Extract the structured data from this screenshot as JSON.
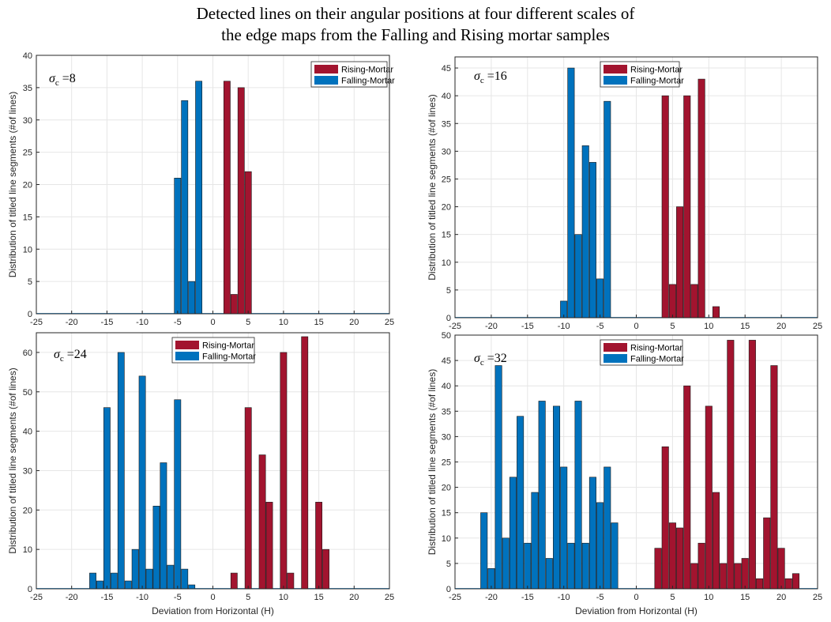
{
  "title_line1": "Detected lines on their angular positions at four different scales of",
  "title_line2": "the edge maps from the Falling and Rising mortar samples",
  "colors": {
    "rising": "#A2142F",
    "falling": "#0072BD",
    "grid": "#e6e6e6",
    "axis": "#262626"
  },
  "chart_data": [
    {
      "type": "bar",
      "annotation": "σc =8",
      "ylabel": "Distribution of titled line segments (#of lines)",
      "xlabel": "",
      "xlim": [
        -25,
        25
      ],
      "ylim": [
        0,
        40
      ],
      "xticks": [
        -25,
        -20,
        -15,
        -10,
        -5,
        0,
        5,
        10,
        15,
        20,
        25
      ],
      "yticks": [
        0,
        5,
        10,
        15,
        20,
        25,
        30,
        35,
        40
      ],
      "grid": true,
      "legend_position": "top-right",
      "series": [
        {
          "name": "Rising-Mortar",
          "x": [
            2,
            3,
            4,
            5
          ],
          "values": [
            36,
            3,
            35,
            22
          ]
        },
        {
          "name": "Falling-Mortar",
          "x": [
            -5,
            -4,
            -3,
            -2
          ],
          "values": [
            21,
            33,
            5,
            36
          ]
        }
      ]
    },
    {
      "type": "bar",
      "annotation": "σc =16",
      "ylabel": "Distribution of titled line segments (#of lines)",
      "xlabel": "",
      "xlim": [
        -25,
        25
      ],
      "ylim": [
        0,
        47
      ],
      "xticks": [
        -25,
        -20,
        -15,
        -10,
        -5,
        0,
        5,
        10,
        15,
        20,
        25
      ],
      "yticks": [
        0,
        5,
        10,
        15,
        20,
        25,
        30,
        35,
        40,
        45
      ],
      "grid": true,
      "legend_position": "top-right",
      "series": [
        {
          "name": "Rising-Mortar",
          "x": [
            4,
            5,
            6,
            7,
            8,
            9,
            10,
            11
          ],
          "values": [
            40,
            6,
            20,
            40,
            6,
            43,
            0,
            2
          ]
        },
        {
          "name": "Falling-Mortar",
          "x": [
            -10,
            -9,
            -8,
            -7,
            -6,
            -5,
            -4
          ],
          "values": [
            3,
            45,
            15,
            31,
            28,
            7,
            39
          ]
        }
      ]
    },
    {
      "type": "bar",
      "annotation": "σc =24",
      "ylabel": "Distribution of titled line segments (#of lines)",
      "xlabel": "Deviation from Horizontal (H)",
      "xlim": [
        -25,
        25
      ],
      "ylim": [
        0,
        65
      ],
      "xticks": [
        -25,
        -20,
        -15,
        -10,
        -5,
        0,
        5,
        10,
        15,
        20,
        25
      ],
      "yticks": [
        0,
        10,
        20,
        30,
        40,
        50,
        60
      ],
      "grid": true,
      "legend_position": "top-center",
      "series": [
        {
          "name": "Rising-Mortar",
          "x": [
            3,
            4,
            5,
            6,
            7,
            8,
            9,
            10,
            11,
            12,
            13,
            14,
            15,
            16
          ],
          "values": [
            4,
            0,
            46,
            0,
            34,
            22,
            0,
            60,
            4,
            0,
            64,
            0,
            22,
            10
          ]
        },
        {
          "name": "Falling-Mortar",
          "x": [
            -17,
            -16,
            -15,
            -14,
            -13,
            -12,
            -11,
            -10,
            -9,
            -8,
            -7,
            -6,
            -5,
            -4,
            -3
          ],
          "values": [
            4,
            2,
            46,
            4,
            60,
            2,
            10,
            54,
            5,
            21,
            32,
            6,
            48,
            5,
            1
          ]
        }
      ]
    },
    {
      "type": "bar",
      "annotation": "σc =32",
      "ylabel": "Distribution of titled line segments (#of lines)",
      "xlabel": "Deviation from Horizontal (H)",
      "xlim": [
        -25,
        25
      ],
      "ylim": [
        0,
        50
      ],
      "xticks": [
        -25,
        -20,
        -15,
        -10,
        -5,
        0,
        5,
        10,
        15,
        20,
        25
      ],
      "yticks": [
        0,
        5,
        10,
        15,
        20,
        25,
        30,
        35,
        40,
        45,
        50
      ],
      "grid": true,
      "legend_position": "top-center",
      "series": [
        {
          "name": "Rising-Mortar",
          "x": [
            3,
            4,
            5,
            6,
            7,
            8,
            9,
            10,
            11,
            12,
            13,
            14,
            15,
            16,
            17,
            18,
            19,
            20,
            21,
            22
          ],
          "values": [
            8,
            28,
            13,
            12,
            40,
            5,
            9,
            36,
            19,
            5,
            49,
            5,
            6,
            49,
            2,
            14,
            44,
            8,
            2,
            3
          ]
        },
        {
          "name": "Falling-Mortar",
          "x": [
            -21,
            -20,
            -19,
            -18,
            -17,
            -16,
            -15,
            -14,
            -13,
            -12,
            -11,
            -10,
            -9,
            -8,
            -7,
            -6,
            -5,
            -4,
            -3
          ],
          "values": [
            15,
            4,
            44,
            10,
            22,
            34,
            9,
            19,
            37,
            6,
            36,
            24,
            9,
            37,
            9,
            22,
            17,
            24,
            13
          ]
        }
      ]
    }
  ]
}
